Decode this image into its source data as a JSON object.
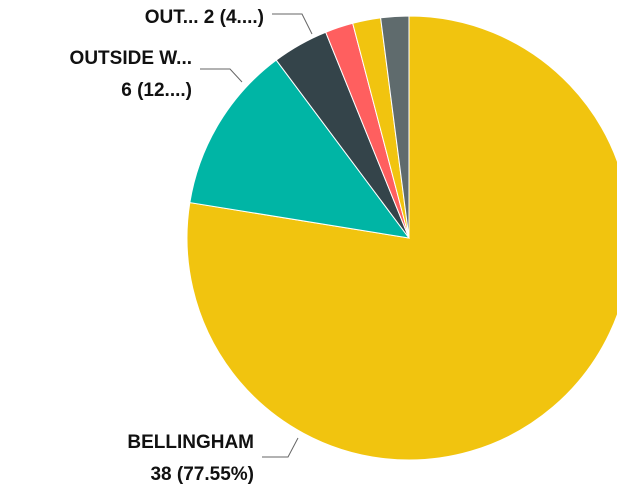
{
  "chart_data": {
    "type": "pie",
    "title": "",
    "slices": [
      {
        "label": "BELLINGHAM",
        "value": 38,
        "percent": "77.55%",
        "color": "#F1C40F"
      },
      {
        "label": "OUTSIDE W...",
        "value": 6,
        "percent": "12....",
        "color": "#00B5A5"
      },
      {
        "label": "OUT...",
        "value": 2,
        "percent": "4....",
        "color": "#34444A"
      },
      {
        "value": 1,
        "color": "#FF5F5F"
      },
      {
        "value": 1,
        "color": "#F1C40F"
      },
      {
        "value": 1,
        "color": "#5F6B6D"
      }
    ],
    "legend": "none"
  },
  "labels": {
    "bellingham_name": "BELLINGHAM",
    "bellingham_value": "38 (77.55%)",
    "outside_name": "OUTSIDE W...",
    "outside_value": "6 (12....)",
    "out_label": "OUT... 2 (4....)"
  }
}
